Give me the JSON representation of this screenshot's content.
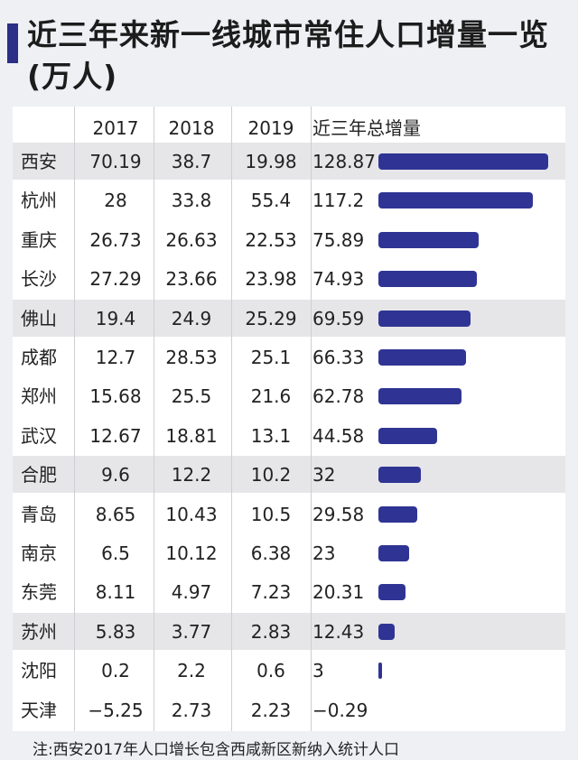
{
  "title": "近三年来新一线城市常住人口增量一览(万人)",
  "note": "注:西安2017年人口增长包含西咸新区新纳入统计人口",
  "colors": {
    "accent": "#2b2f86",
    "bar": "#2f3494",
    "band": "#e6e6e8"
  },
  "table": {
    "headers": [
      "",
      "2017",
      "2018",
      "2019",
      "近三年总增量"
    ],
    "rows": [
      {
        "city": "西安",
        "y2017": "70.19",
        "y2018": "38.7",
        "y2019": "19.98",
        "total": "128.87"
      },
      {
        "city": "杭州",
        "y2017": "28",
        "y2018": "33.8",
        "y2019": "55.4",
        "total": "117.2"
      },
      {
        "city": "重庆",
        "y2017": "26.73",
        "y2018": "26.63",
        "y2019": "22.53",
        "total": "75.89"
      },
      {
        "city": "长沙",
        "y2017": "27.29",
        "y2018": "23.66",
        "y2019": "23.98",
        "total": "74.93"
      },
      {
        "city": "佛山",
        "y2017": "19.4",
        "y2018": "24.9",
        "y2019": "25.29",
        "total": "69.59"
      },
      {
        "city": "成都",
        "y2017": "12.7",
        "y2018": "28.53",
        "y2019": "25.1",
        "total": "66.33"
      },
      {
        "city": "郑州",
        "y2017": "15.68",
        "y2018": "25.5",
        "y2019": "21.6",
        "total": "62.78"
      },
      {
        "city": "武汉",
        "y2017": "12.67",
        "y2018": "18.81",
        "y2019": "13.1",
        "total": "44.58"
      },
      {
        "city": "合肥",
        "y2017": "9.6",
        "y2018": "12.2",
        "y2019": "10.2",
        "total": "32"
      },
      {
        "city": "青岛",
        "y2017": "8.65",
        "y2018": "10.43",
        "y2019": "10.5",
        "total": "29.58"
      },
      {
        "city": "南京",
        "y2017": "6.5",
        "y2018": "10.12",
        "y2019": "6.38",
        "total": "23"
      },
      {
        "city": "东莞",
        "y2017": "8.11",
        "y2018": "4.97",
        "y2019": "7.23",
        "total": "20.31"
      },
      {
        "city": "苏州",
        "y2017": "5.83",
        "y2018": "3.77",
        "y2019": "2.83",
        "total": "12.43"
      },
      {
        "city": "沈阳",
        "y2017": "0.2",
        "y2018": "2.2",
        "y2019": "0.6",
        "total": "3"
      },
      {
        "city": "天津",
        "y2017": "−5.25",
        "y2018": "2.73",
        "y2019": "2.23",
        "total": "−0.29"
      }
    ],
    "shaded_rows": [
      0,
      4,
      8,
      12
    ]
  },
  "chart_data": {
    "type": "bar",
    "title": "近三年来新一线城市常住人口增量一览(万人)",
    "categories": [
      "西安",
      "杭州",
      "重庆",
      "长沙",
      "佛山",
      "成都",
      "郑州",
      "武汉",
      "合肥",
      "青岛",
      "南京",
      "东莞",
      "苏州",
      "沈阳",
      "天津"
    ],
    "series": [
      {
        "name": "2017",
        "values": [
          70.19,
          28,
          26.73,
          27.29,
          19.4,
          12.7,
          15.68,
          12.67,
          9.6,
          8.65,
          6.5,
          8.11,
          5.83,
          0.2,
          -5.25
        ]
      },
      {
        "name": "2018",
        "values": [
          38.7,
          33.8,
          26.63,
          23.66,
          24.9,
          28.53,
          25.5,
          18.81,
          12.2,
          10.43,
          10.12,
          4.97,
          3.77,
          2.2,
          2.73
        ]
      },
      {
        "name": "2019",
        "values": [
          19.98,
          55.4,
          22.53,
          23.98,
          25.29,
          25.1,
          21.6,
          13.1,
          10.2,
          10.5,
          6.38,
          7.23,
          2.83,
          0.6,
          2.23
        ]
      },
      {
        "name": "近三年总增量",
        "values": [
          128.87,
          117.2,
          75.89,
          74.93,
          69.59,
          66.33,
          62.78,
          44.58,
          32,
          29.58,
          23,
          20.31,
          12.43,
          3,
          -0.29
        ]
      }
    ],
    "orientation": "horizontal",
    "xlim": [
      0,
      128.87
    ],
    "grid": false
  }
}
